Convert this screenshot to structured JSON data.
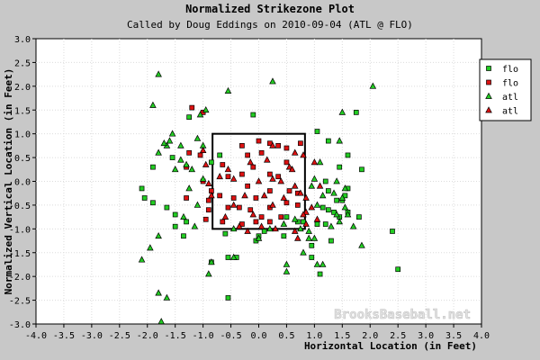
{
  "chart_data": {
    "type": "scatter",
    "title": "Normalized Strikezone Plot",
    "subtitle": "Called by Doug Eddings on 2010-09-04 (ATL @ FLO)",
    "xlabel": "Horizontal Location (in Feet)",
    "ylabel": "Normalized Vertical Location (in Feet)",
    "xlim": [
      -4.0,
      4.0
    ],
    "ylim": [
      -3.0,
      3.0
    ],
    "xticks": [
      "-4.0",
      "-3.5",
      "-3.0",
      "-2.5",
      "-2.0",
      "-1.5",
      "-1.0",
      "-0.5",
      "0.0",
      "0.5",
      "1.0",
      "1.5",
      "2.0",
      "2.5",
      "3.0",
      "3.5",
      "4.0"
    ],
    "yticks": [
      "3.0",
      "2.5",
      "2.0",
      "1.5",
      "1.0",
      "0.5",
      "0.0",
      "-0.5",
      "-1.0",
      "-1.5",
      "-2.0",
      "-2.5",
      "-3.0"
    ],
    "grid": true,
    "legend_position": "top-right",
    "watermark": "BrooksBaseball.net",
    "strike_zone": {
      "x": [
        -0.83,
        0.83
      ],
      "y": [
        -1.0,
        1.0
      ]
    },
    "series": [
      {
        "name": "flo",
        "marker": "square",
        "color": "#22cc22",
        "points": [
          [
            -1.25,
            1.35
          ],
          [
            -1.55,
            0.5
          ],
          [
            -1.9,
            0.3
          ],
          [
            -1.9,
            -0.45
          ],
          [
            -1.65,
            -0.55
          ],
          [
            -2.1,
            -0.15
          ],
          [
            -2.05,
            -0.35
          ],
          [
            -1.5,
            -0.7
          ],
          [
            -1.3,
            -0.85
          ],
          [
            -1.5,
            -0.95
          ],
          [
            -1.35,
            -1.15
          ],
          [
            -0.85,
            -1.7
          ],
          [
            -0.55,
            -1.6
          ],
          [
            -0.4,
            -1.6
          ],
          [
            -0.55,
            -2.45
          ],
          [
            -0.6,
            -1.1
          ],
          [
            -0.85,
            0.4
          ],
          [
            -0.7,
            0.55
          ],
          [
            -0.1,
            1.4
          ],
          [
            0.0,
            -1.15
          ],
          [
            0.45,
            -1.15
          ],
          [
            0.8,
            -0.85
          ],
          [
            1.05,
            -0.9
          ],
          [
            1.15,
            -0.55
          ],
          [
            1.2,
            -0.9
          ],
          [
            1.25,
            -0.6
          ],
          [
            1.35,
            -0.65
          ],
          [
            1.4,
            -0.4
          ],
          [
            1.5,
            -0.4
          ],
          [
            1.55,
            -0.3
          ],
          [
            1.6,
            -0.65
          ],
          [
            1.45,
            -0.75
          ],
          [
            1.25,
            -0.2
          ],
          [
            1.6,
            -0.15
          ],
          [
            1.2,
            0.0
          ],
          [
            1.6,
            0.55
          ],
          [
            1.25,
            0.85
          ],
          [
            1.05,
            1.05
          ],
          [
            1.45,
            0.3
          ],
          [
            1.75,
            1.45
          ],
          [
            1.85,
            0.25
          ],
          [
            1.8,
            -0.75
          ],
          [
            1.3,
            -1.25
          ],
          [
            0.95,
            -1.35
          ],
          [
            0.95,
            -1.6
          ],
          [
            1.1,
            -1.95
          ],
          [
            2.4,
            -1.05
          ],
          [
            2.5,
            -1.85
          ],
          [
            0.5,
            -0.75
          ],
          [
            0.1,
            -1.05
          ],
          [
            -0.05,
            -1.25
          ],
          [
            0.7,
            -0.85
          ]
        ]
      },
      {
        "name": "flo",
        "marker": "square",
        "color": "#dd1111",
        "points": [
          [
            -1.2,
            1.55
          ],
          [
            -1.0,
            1.45
          ],
          [
            -1.25,
            0.6
          ],
          [
            -1.05,
            0.55
          ],
          [
            -1.3,
            0.3
          ],
          [
            -1.0,
            0.0
          ],
          [
            -0.85,
            -0.2
          ],
          [
            -0.9,
            -0.4
          ],
          [
            -0.9,
            -0.6
          ],
          [
            -0.95,
            -0.8
          ],
          [
            -0.7,
            -0.3
          ],
          [
            -0.55,
            -0.55
          ],
          [
            -0.55,
            0.1
          ],
          [
            -0.3,
            0.75
          ],
          [
            -0.2,
            0.55
          ],
          [
            -0.1,
            0.3
          ],
          [
            0.05,
            0.6
          ],
          [
            0.2,
            0.8
          ],
          [
            0.35,
            0.75
          ],
          [
            0.5,
            0.7
          ],
          [
            0.75,
            0.8
          ],
          [
            0.5,
            0.4
          ],
          [
            0.35,
            0.1
          ],
          [
            0.2,
            -0.2
          ],
          [
            -0.2,
            -0.1
          ],
          [
            -0.05,
            -0.35
          ],
          [
            -0.15,
            -0.6
          ],
          [
            0.05,
            -0.75
          ],
          [
            0.2,
            -0.55
          ],
          [
            -0.3,
            -0.9
          ],
          [
            -0.05,
            -0.85
          ],
          [
            0.2,
            -0.85
          ],
          [
            0.4,
            -0.75
          ],
          [
            0.5,
            -0.45
          ],
          [
            0.7,
            -0.25
          ],
          [
            0.7,
            -0.5
          ],
          [
            -0.65,
            0.35
          ],
          [
            -0.45,
            -0.35
          ],
          [
            -0.3,
            0.15
          ],
          [
            0.2,
            0.15
          ],
          [
            -0.35,
            -0.55
          ],
          [
            -0.65,
            -0.85
          ],
          [
            -1.3,
            -0.35
          ],
          [
            0.0,
            0.85
          ],
          [
            0.55,
            -0.2
          ]
        ]
      },
      {
        "name": "atl",
        "marker": "triangle",
        "color": "#22cc22",
        "points": [
          [
            -1.8,
            2.25
          ],
          [
            -1.9,
            1.6
          ],
          [
            -0.55,
            1.9
          ],
          [
            0.25,
            2.1
          ],
          [
            2.05,
            2.0
          ],
          [
            1.5,
            1.45
          ],
          [
            -0.95,
            1.5
          ],
          [
            -1.05,
            1.4
          ],
          [
            -1.55,
            1.0
          ],
          [
            -1.6,
            0.85
          ],
          [
            -1.65,
            0.75
          ],
          [
            -1.8,
            0.6
          ],
          [
            -1.4,
            0.75
          ],
          [
            -1.3,
            0.35
          ],
          [
            -1.5,
            0.25
          ],
          [
            -1.4,
            0.45
          ],
          [
            -1.2,
            0.25
          ],
          [
            -1.7,
            0.8
          ],
          [
            -1.1,
            0.9
          ],
          [
            -1.0,
            0.75
          ],
          [
            -1.0,
            0.05
          ],
          [
            -1.25,
            -0.15
          ],
          [
            -1.1,
            -0.5
          ],
          [
            -1.35,
            -0.75
          ],
          [
            -1.15,
            -0.95
          ],
          [
            -1.8,
            -1.15
          ],
          [
            -1.95,
            -1.4
          ],
          [
            -2.1,
            -1.65
          ],
          [
            -1.8,
            -2.35
          ],
          [
            -1.65,
            -2.45
          ],
          [
            -1.75,
            -2.95
          ],
          [
            -0.9,
            -1.95
          ],
          [
            -0.85,
            -1.7
          ],
          [
            -0.45,
            -1.6
          ],
          [
            0.0,
            -1.2
          ],
          [
            0.2,
            -1.0
          ],
          [
            0.5,
            -1.75
          ],
          [
            0.5,
            -1.9
          ],
          [
            0.8,
            -1.5
          ],
          [
            0.9,
            -1.2
          ],
          [
            1.0,
            -1.2
          ],
          [
            1.05,
            -1.75
          ],
          [
            1.15,
            -1.75
          ],
          [
            1.3,
            -0.95
          ],
          [
            1.4,
            -0.7
          ],
          [
            1.45,
            -0.85
          ],
          [
            1.55,
            -0.55
          ],
          [
            1.7,
            -0.95
          ],
          [
            1.35,
            -0.25
          ],
          [
            1.5,
            -0.35
          ],
          [
            1.55,
            -0.15
          ],
          [
            1.15,
            -0.3
          ],
          [
            1.05,
            -0.5
          ],
          [
            1.6,
            -0.7
          ],
          [
            1.85,
            -1.35
          ],
          [
            1.4,
            0.0
          ],
          [
            1.45,
            0.85
          ],
          [
            1.1,
            0.4
          ],
          [
            1.0,
            0.05
          ],
          [
            0.95,
            -0.1
          ],
          [
            0.65,
            -0.8
          ],
          [
            0.75,
            -1.0
          ],
          [
            0.9,
            -1.05
          ],
          [
            0.45,
            -0.9
          ],
          [
            -0.45,
            -1.0
          ]
        ]
      },
      {
        "name": "atl",
        "marker": "triangle",
        "color": "#dd1111",
        "points": [
          [
            -1.0,
            0.65
          ],
          [
            -0.95,
            0.35
          ],
          [
            -0.9,
            -0.05
          ],
          [
            -0.85,
            -0.3
          ],
          [
            -0.55,
            0.25
          ],
          [
            -0.45,
            0.05
          ],
          [
            -0.25,
            -0.3
          ],
          [
            -0.45,
            -0.5
          ],
          [
            -0.6,
            -0.75
          ],
          [
            -0.35,
            -0.95
          ],
          [
            -0.1,
            -0.7
          ],
          [
            0.0,
            0.0
          ],
          [
            0.1,
            -0.3
          ],
          [
            0.25,
            0.05
          ],
          [
            0.25,
            -0.5
          ],
          [
            0.45,
            -0.35
          ],
          [
            0.65,
            -0.1
          ],
          [
            0.75,
            -0.25
          ],
          [
            0.85,
            -0.35
          ],
          [
            0.85,
            -0.65
          ],
          [
            0.8,
            0.55
          ],
          [
            0.65,
            0.6
          ],
          [
            0.55,
            0.3
          ],
          [
            0.15,
            0.45
          ],
          [
            0.25,
            0.75
          ],
          [
            0.6,
            0.25
          ],
          [
            1.0,
            0.4
          ],
          [
            1.1,
            -0.1
          ],
          [
            1.05,
            -0.8
          ],
          [
            0.95,
            -0.55
          ],
          [
            0.85,
            -0.9
          ],
          [
            0.65,
            -1.05
          ],
          [
            0.3,
            -1.0
          ],
          [
            0.05,
            -0.95
          ],
          [
            -0.2,
            -1.05
          ],
          [
            0.7,
            -1.2
          ],
          [
            0.4,
            0.0
          ],
          [
            -0.7,
            0.1
          ],
          [
            -0.15,
            0.4
          ],
          [
            0.8,
            -0.7
          ]
        ]
      }
    ]
  }
}
